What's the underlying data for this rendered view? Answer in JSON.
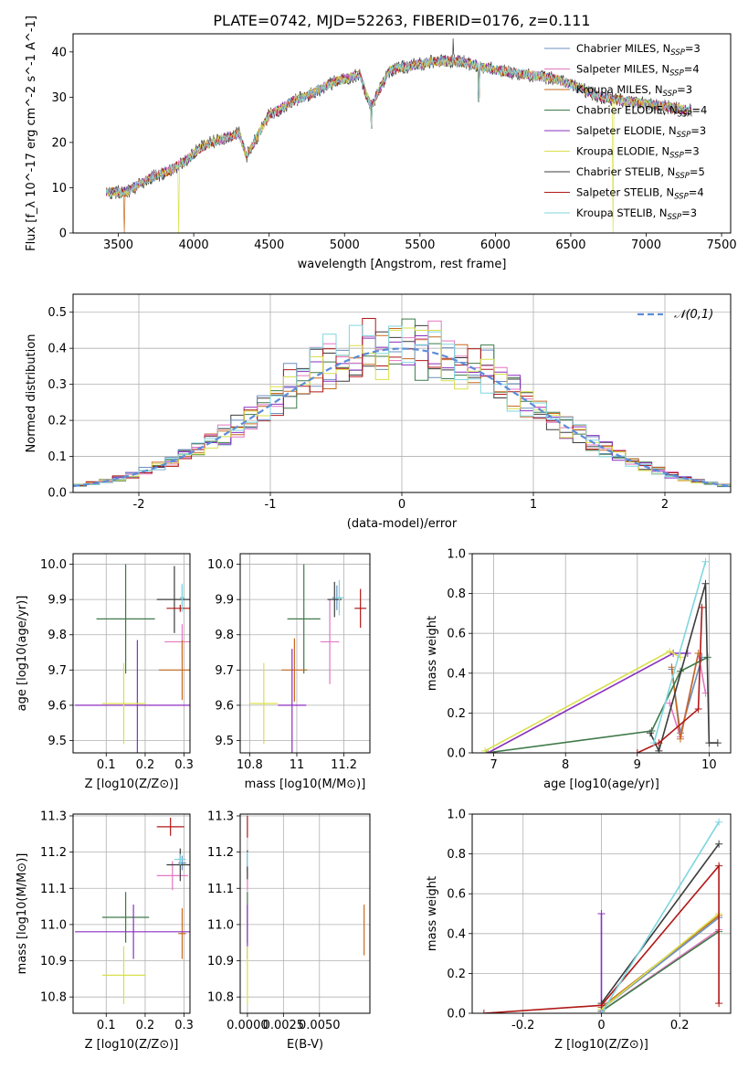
{
  "figure_title": "PLATE=0742, MJD=52263, FIBERID=0176, z=0.111",
  "series_names": [
    "Chabrier MILES",
    "Salpeter MILES",
    "Kroupa MILES",
    "Chabrier ELODIE",
    "Salpeter ELODIE",
    "Kroupa ELODIE",
    "Chabrier STELIB",
    "Salpeter STELIB",
    "Kroupa STELIB"
  ],
  "n_ssp": [
    3,
    4,
    3,
    4,
    3,
    3,
    5,
    4,
    3
  ],
  "colors": [
    "#6a8fc0",
    "#e377c2",
    "#c56a1e",
    "#3f7a4a",
    "#8b2fc0",
    "#d9e04a",
    "#3c3c3c",
    "#b01818",
    "#7fd6e0"
  ],
  "chart_data": [
    {
      "type": "line",
      "title": "PLATE=0742, MJD=52263, FIBERID=0176, z=0.111",
      "xlabel": "wavelength [Angstrom, rest frame]",
      "ylabel": "Flux [f_λ 10^-17 erg cm^-2 s^-1 A^-1]",
      "xlim": [
        3200,
        7560
      ],
      "ylim": [
        0,
        44
      ],
      "xticks": [
        3500,
        4000,
        4500,
        5000,
        5500,
        6000,
        6500,
        7000,
        7500
      ],
      "yticks": [
        0,
        10,
        20,
        30,
        40
      ],
      "legend": "top-right",
      "spectrum_anchors": {
        "x": [
          3420,
          3550,
          3700,
          3850,
          3950,
          4050,
          4200,
          4300,
          4350,
          4500,
          4650,
          4800,
          4900,
          5000,
          5100,
          5175,
          5300,
          5450,
          5600,
          5750,
          5890,
          6000,
          6200,
          6400,
          6563,
          6700,
          6900,
          7100,
          7300
        ],
        "y": [
          9,
          9,
          12,
          14,
          16,
          19,
          21,
          22,
          17,
          26,
          29,
          31,
          33,
          34,
          35,
          28,
          36,
          37,
          38,
          38,
          37,
          36,
          35,
          34,
          32,
          30,
          29,
          28,
          27
        ]
      },
      "spikes": [
        {
          "x": 3540,
          "y": 0
        },
        {
          "x": 3900,
          "y": 0
        },
        {
          "x": 5180,
          "y": 23
        },
        {
          "x": 5720,
          "y": 43
        },
        {
          "x": 5890,
          "y": 29
        },
        {
          "x": 6780,
          "y": 0
        }
      ],
      "legend_labels": [
        "Chabrier MILES, N",
        "Salpeter MILES, N",
        "Kroupa MILES, N",
        "Chabrier ELODIE, N",
        "Salpeter ELODIE, N",
        "Kroupa ELODIE, N",
        "Chabrier STELIB, N",
        "Salpeter STELIB, N",
        "Kroupa STELIB, N"
      ],
      "legend_values": [
        "=3",
        "=4",
        "=3",
        "=4",
        "=3",
        "=3",
        "=5",
        "=4",
        "=3"
      ],
      "legend_subscript": "SSP"
    },
    {
      "type": "histogram",
      "xlabel": "(data-model)/error",
      "ylabel": "Normed distribution",
      "xlim": [
        -2.5,
        2.5
      ],
      "ylim": [
        0,
        0.55
      ],
      "xticks": [
        -2,
        -1,
        0,
        1,
        2
      ],
      "yticks": [
        0.0,
        0.1,
        0.2,
        0.3,
        0.4,
        0.5
      ],
      "bin_width": 0.1,
      "legend": "top-right",
      "reference": "𝒩(0,1)",
      "reference_curve": {
        "type": "gaussian",
        "mean": 0,
        "sigma": 1,
        "style": "dashed"
      }
    },
    {
      "type": "scatter",
      "xlabel": "Z [log10(Z/Z⊙)]",
      "ylabel": "age [log10(age/yr)]",
      "xlim": [
        0.015,
        0.315
      ],
      "ylim": [
        9.465,
        10.03
      ],
      "xticks": [
        0.1,
        0.2,
        0.3
      ],
      "yticks": [
        9.5,
        9.6,
        9.7,
        9.8,
        9.9,
        10.0
      ],
      "points": [
        {
          "series": 0,
          "x": 0.295,
          "y": 9.905,
          "xerr": 0.006,
          "yerr": 0.035
        },
        {
          "series": 1,
          "x": 0.295,
          "y": 9.78,
          "xerr": 0.045,
          "yerr": 0.05
        },
        {
          "series": 2,
          "x": 0.295,
          "y": 9.7,
          "xerr": 0.06,
          "yerr": 0.085
        },
        {
          "series": 3,
          "x": 0.15,
          "y": 9.845,
          "xerr": 0.075,
          "yerr": 0.155
        },
        {
          "series": 4,
          "x": 0.18,
          "y": 9.6,
          "xerr": 0.16,
          "yerr": 0.185
        },
        {
          "series": 5,
          "x": 0.145,
          "y": 9.605,
          "xerr": 0.055,
          "yerr": 0.115
        },
        {
          "series": 6,
          "x": 0.275,
          "y": 9.9,
          "xerr": 0.045,
          "yerr": 0.095
        },
        {
          "series": 7,
          "x": 0.29,
          "y": 9.875,
          "xerr": 0.035,
          "yerr": 0.01
        },
        {
          "series": 8,
          "x": 0.295,
          "y": 9.905,
          "xerr": 0.005,
          "yerr": 0.04
        }
      ]
    },
    {
      "type": "scatter",
      "xlabel": "mass [log10(M/M⊙)]",
      "ylabel": "",
      "xlim": [
        10.76,
        11.31
      ],
      "ylim": [
        9.465,
        10.03
      ],
      "xticks": [
        10.8,
        11.0,
        11.2
      ],
      "yticks": [
        9.5,
        9.6,
        9.7,
        9.8,
        9.9,
        10.0
      ],
      "points": [
        {
          "series": 0,
          "x": 11.17,
          "y": 9.905,
          "xerr": 0.02,
          "yerr": 0.035
        },
        {
          "series": 1,
          "x": 11.14,
          "y": 9.78,
          "xerr": 0.04,
          "yerr": 0.12
        },
        {
          "series": 2,
          "x": 10.99,
          "y": 9.7,
          "xerr": 0.055,
          "yerr": 0.09
        },
        {
          "series": 3,
          "x": 11.03,
          "y": 9.845,
          "xerr": 0.07,
          "yerr": 0.155
        },
        {
          "series": 4,
          "x": 10.98,
          "y": 9.6,
          "xerr": 0.06,
          "yerr": 0.16
        },
        {
          "series": 5,
          "x": 10.86,
          "y": 9.605,
          "xerr": 0.06,
          "yerr": 0.115
        },
        {
          "series": 6,
          "x": 11.16,
          "y": 9.9,
          "xerr": 0.03,
          "yerr": 0.05
        },
        {
          "series": 7,
          "x": 11.27,
          "y": 9.875,
          "xerr": 0.025,
          "yerr": 0.055
        },
        {
          "series": 8,
          "x": 11.18,
          "y": 9.905,
          "xerr": 0.02,
          "yerr": 0.05
        }
      ]
    },
    {
      "type": "line",
      "xlabel": "age [log10(age/yr)]",
      "ylabel": "mass weight",
      "xlim": [
        6.7,
        10.3
      ],
      "ylim": [
        0,
        1.0
      ],
      "xticks": [
        7,
        8,
        9,
        10
      ],
      "yticks": [
        0.0,
        0.2,
        0.4,
        0.6,
        0.8,
        1.0
      ],
      "series": [
        {
          "series": 0,
          "x": [
            9.48,
            9.6,
            9.9
          ],
          "y": [
            0.42,
            0.1,
            0.48
          ]
        },
        {
          "series": 1,
          "x": [
            9.45,
            9.6,
            9.85,
            9.95
          ],
          "y": [
            0.25,
            0.08,
            0.5,
            0.3
          ]
        },
        {
          "series": 2,
          "x": [
            9.48,
            9.6,
            9.85
          ],
          "y": [
            0.43,
            0.07,
            0.5
          ]
        },
        {
          "series": 3,
          "x": [
            6.9,
            9.2,
            9.6,
            9.98
          ],
          "y": [
            0.0,
            0.11,
            0.41,
            0.48
          ]
        },
        {
          "series": 4,
          "x": [
            6.92,
            9.5,
            9.7
          ],
          "y": [
            0.0,
            0.5,
            0.5
          ]
        },
        {
          "series": 5,
          "x": [
            6.88,
            9.45,
            9.6
          ],
          "y": [
            0.01,
            0.51,
            0.48
          ]
        },
        {
          "series": 6,
          "x": [
            9.18,
            9.3,
            9.95,
            10.0,
            10.12
          ],
          "y": [
            0.1,
            0.01,
            0.85,
            0.05,
            0.05
          ]
        },
        {
          "series": 7,
          "x": [
            9.0,
            9.3,
            9.85,
            9.9
          ],
          "y": [
            0.0,
            0.05,
            0.22,
            0.73
          ]
        },
        {
          "series": 8,
          "x": [
            9.23,
            9.95
          ],
          "y": [
            0.05,
            0.96
          ]
        }
      ]
    },
    {
      "type": "scatter",
      "xlabel": "Z [log10(Z/Z⊙)]",
      "ylabel": "mass [log10(M/M⊙)]",
      "xlim": [
        0.015,
        0.315
      ],
      "ylim": [
        10.755,
        11.305
      ],
      "xticks": [
        0.1,
        0.2,
        0.3
      ],
      "yticks": [
        10.8,
        10.9,
        11.0,
        11.1,
        11.2,
        11.3
      ],
      "points": [
        {
          "series": 0,
          "x": 0.295,
          "y": 11.17,
          "xerr": 0.01,
          "yerr": 0.02
        },
        {
          "series": 1,
          "x": 0.27,
          "y": 11.135,
          "xerr": 0.04,
          "yerr": 0.04
        },
        {
          "series": 2,
          "x": 0.295,
          "y": 10.975,
          "xerr": 0.01,
          "yerr": 0.07
        },
        {
          "series": 3,
          "x": 0.15,
          "y": 11.02,
          "xerr": 0.06,
          "yerr": 0.07
        },
        {
          "series": 4,
          "x": 0.17,
          "y": 10.98,
          "xerr": 0.15,
          "yerr": 0.075
        },
        {
          "series": 5,
          "x": 0.145,
          "y": 10.86,
          "xerr": 0.055,
          "yerr": 0.08
        },
        {
          "series": 6,
          "x": 0.29,
          "y": 11.165,
          "xerr": 0.035,
          "yerr": 0.045
        },
        {
          "series": 7,
          "x": 0.265,
          "y": 11.27,
          "xerr": 0.035,
          "yerr": 0.025
        },
        {
          "series": 8,
          "x": 0.29,
          "y": 11.18,
          "xerr": 0.015,
          "yerr": 0.015
        }
      ]
    },
    {
      "type": "scatter",
      "xlabel": "E(B-V)",
      "ylabel": "",
      "xlim": [
        -0.0005,
        0.0085
      ],
      "ylim": [
        10.755,
        11.305
      ],
      "xticks": [
        0.0,
        0.0025,
        0.005
      ],
      "xticklabels": [
        "0.0000",
        "0.0025",
        "0.0050"
      ],
      "yticks": [
        10.8,
        10.9,
        11.0,
        11.1,
        11.2,
        11.3
      ],
      "points": [
        {
          "series": 0,
          "x": 0.0,
          "y": 11.17,
          "xerr": 0,
          "yerr": 0.025
        },
        {
          "series": 1,
          "x": 0.0,
          "y": 11.135,
          "xerr": 0,
          "yerr": 0.04
        },
        {
          "series": 2,
          "x": 0.0081,
          "y": 10.985,
          "xerr": 0,
          "yerr": 0.07
        },
        {
          "series": 3,
          "x": 0.0,
          "y": 11.02,
          "xerr": 0,
          "yerr": 0.07
        },
        {
          "series": 4,
          "x": 0.0,
          "y": 10.98,
          "xerr": 0,
          "yerr": 0.075
        },
        {
          "series": 5,
          "x": 0.0,
          "y": 10.86,
          "xerr": 0,
          "yerr": 0.08
        },
        {
          "series": 6,
          "x": 0.0,
          "y": 11.165,
          "xerr": 0,
          "yerr": 0.04
        },
        {
          "series": 7,
          "x": 0.0,
          "y": 11.27,
          "xerr": 0,
          "yerr": 0.03
        },
        {
          "series": 8,
          "x": 0.0,
          "y": 11.18,
          "xerr": 0,
          "yerr": 0.02
        }
      ]
    },
    {
      "type": "line",
      "xlabel": "Z [log10(Z/Z⊙)]",
      "ylabel": "mass weight",
      "xlim": [
        -0.33,
        0.33
      ],
      "ylim": [
        0,
        1.0
      ],
      "xticks": [
        -0.2,
        0.0,
        0.2
      ],
      "yticks": [
        0.0,
        0.2,
        0.4,
        0.6,
        0.8,
        1.0
      ],
      "series": [
        {
          "series": 0,
          "x": [
            0.0,
            0.3
          ],
          "y": [
            0.02,
            0.48
          ]
        },
        {
          "series": 1,
          "x": [
            0.0,
            0.3
          ],
          "y": [
            0.01,
            0.42
          ]
        },
        {
          "series": 2,
          "x": [
            0.0,
            0.3
          ],
          "y": [
            0.03,
            0.49
          ]
        },
        {
          "series": 3,
          "x": [
            0.0,
            0.3
          ],
          "y": [
            0.01,
            0.41
          ]
        },
        {
          "series": 4,
          "x": [
            0.0,
            0.0
          ],
          "y": [
            0.0,
            0.5
          ]
        },
        {
          "series": 5,
          "x": [
            0.0,
            0.3
          ],
          "y": [
            0.02,
            0.5
          ]
        },
        {
          "series": 6,
          "x": [
            0.0,
            0.3
          ],
          "y": [
            0.05,
            0.85
          ]
        },
        {
          "series": 7,
          "x": [
            -0.3,
            0.0,
            0.3,
            0.3
          ],
          "y": [
            0.0,
            0.04,
            0.74,
            0.05
          ]
        },
        {
          "series": 8,
          "x": [
            0.0,
            0.3
          ],
          "y": [
            0.0,
            0.96
          ]
        }
      ]
    }
  ]
}
